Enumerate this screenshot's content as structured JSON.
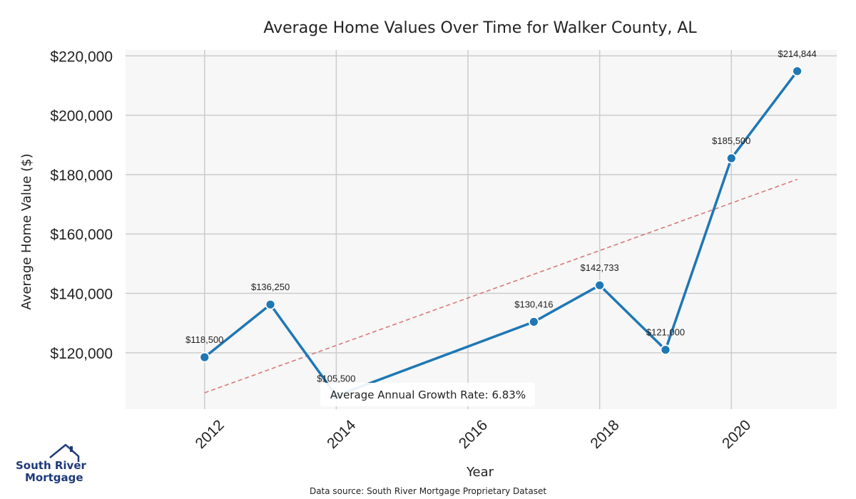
{
  "chart_data": {
    "type": "line",
    "title": "Average Home Values Over Time for Walker County, AL",
    "xlabel": "Year",
    "ylabel": "Average Home Value ($)",
    "x": [
      2012,
      2013,
      2014,
      2017,
      2018,
      2019,
      2020,
      2021
    ],
    "series": [
      {
        "name": "Average Home Value",
        "values": [
          118500,
          136250,
          105500,
          130416,
          142733,
          121000,
          185500,
          214844
        ],
        "labels": [
          "$118,500",
          "$136,250",
          "$105,500",
          "$130,416",
          "$142,733",
          "$121,000",
          "$185,500",
          "$214,844"
        ],
        "color": "#1f77b4"
      }
    ],
    "trend": {
      "start": [
        2012,
        106500
      ],
      "end": [
        2021,
        178400
      ],
      "color": "#d9797a",
      "style": "dashed"
    },
    "xlim": [
      2010.8,
      2021.6
    ],
    "ylim": [
      101000,
      222000
    ],
    "xticks": [
      2012,
      2014,
      2016,
      2018,
      2020
    ],
    "xtick_labels": [
      "2012",
      "2014",
      "2016",
      "2018",
      "2020"
    ],
    "yticks": [
      120000,
      140000,
      160000,
      180000,
      200000,
      220000
    ],
    "ytick_labels": [
      "$120,000",
      "$140,000",
      "$160,000",
      "$180,000",
      "$200,000",
      "$220,000"
    ],
    "grid": true,
    "annotation": "Average Annual Growth Rate: 6.83%",
    "source": "Data source: South River Mortgage Proprietary Dataset"
  },
  "logo": {
    "line1": "South River",
    "line2": "Mortgage"
  },
  "colors": {
    "plot_bg": "#f7f7f7",
    "grid": "#cccccc",
    "line": "#1f77b4",
    "trend": "#d9797a",
    "logo": "#1f3a7a"
  }
}
